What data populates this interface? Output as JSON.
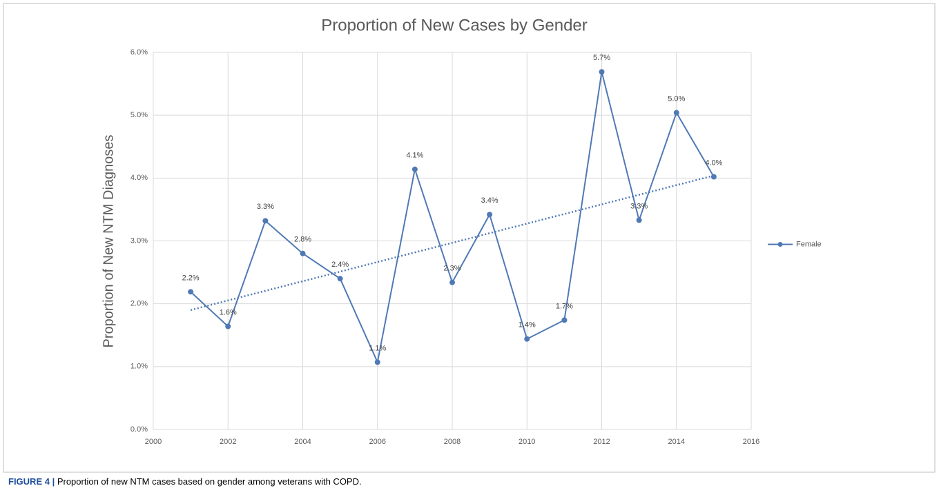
{
  "chart_data": {
    "type": "line",
    "title": "Proportion of New Cases by Gender",
    "ylabel": "Proportion of New NTM Diagnoses",
    "x": [
      2001,
      2002,
      2003,
      2004,
      2005,
      2006,
      2007,
      2008,
      2009,
      2010,
      2011,
      2012,
      2013,
      2014,
      2015
    ],
    "series": [
      {
        "name": "Female",
        "color": "#4f79b5",
        "values": [
          2.19,
          1.64,
          3.32,
          2.8,
          2.4,
          1.07,
          4.14,
          2.34,
          3.42,
          1.44,
          1.74,
          5.69,
          3.33,
          5.04,
          4.02
        ],
        "value_labels": [
          "2.2%",
          "1.6%",
          "3.3%",
          "2.8%",
          "2.4%",
          "1.1%",
          "4.1%",
          "2.3%",
          "3.4%",
          "1.4%",
          "1.7%",
          "5.7%",
          "3.3%",
          "5.0%",
          "4.0%"
        ]
      }
    ],
    "trendline": {
      "x": [
        2001,
        2015
      ],
      "values": [
        1.9,
        4.04
      ],
      "color": "#4f79b5",
      "style": "dotted"
    },
    "xlim": [
      2000,
      2016
    ],
    "xticks": [
      2000,
      2002,
      2004,
      2006,
      2008,
      2010,
      2012,
      2014,
      2016
    ],
    "ylim": [
      0,
      6
    ],
    "yticks": [
      {
        "value": 0,
        "label": "0.0%"
      },
      {
        "value": 1,
        "label": "1.0%"
      },
      {
        "value": 2,
        "label": "2.0%"
      },
      {
        "value": 3,
        "label": "3.0%"
      },
      {
        "value": 4,
        "label": "4.0%"
      },
      {
        "value": 5,
        "label": "5.0%"
      },
      {
        "value": 6,
        "label": "6.0%"
      }
    ],
    "grid": true,
    "legend": "right"
  },
  "figure": {
    "label": "FIGURE 4 |",
    "caption": "Proportion of new NTM cases based on gender among veterans with COPD."
  }
}
